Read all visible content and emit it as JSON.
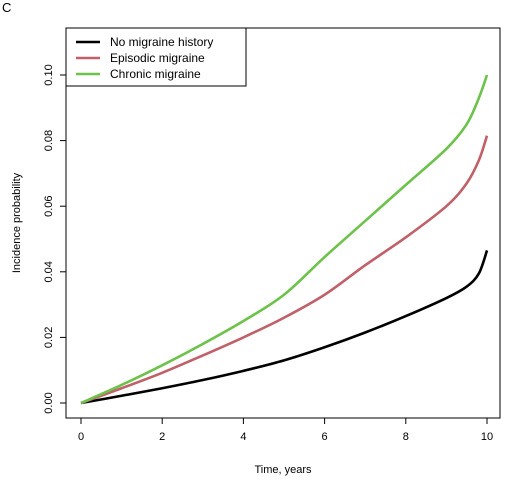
{
  "panel_label": "C",
  "chart_data": {
    "type": "line",
    "title": "",
    "xlabel": "Time, years",
    "ylabel": "Incidence probability",
    "xlim": [
      0,
      10
    ],
    "ylim": [
      0,
      0.105
    ],
    "x_ticks": [
      0,
      2,
      4,
      6,
      8,
      10
    ],
    "y_ticks": [
      0.0,
      0.02,
      0.04,
      0.06,
      0.08,
      0.1
    ],
    "y_tick_labels": [
      "0.00",
      "0.02",
      "0.04",
      "0.06",
      "0.08",
      "0.10"
    ],
    "x_tick_labels": [
      "0",
      "2",
      "4",
      "6",
      "8",
      "10"
    ],
    "grid": false,
    "legend_position": "top-left",
    "series": [
      {
        "name": "No migraine history",
        "color": "#000000",
        "x": [
          0,
          1,
          2,
          3,
          4,
          5,
          6,
          7,
          8,
          9,
          9.5,
          9.8,
          10
        ],
        "y": [
          0.0,
          0.0022,
          0.0045,
          0.007,
          0.0098,
          0.013,
          0.017,
          0.0215,
          0.0265,
          0.032,
          0.0355,
          0.0395,
          0.0465
        ]
      },
      {
        "name": "Episodic migraine",
        "color": "#c0616a",
        "x": [
          0,
          1,
          2,
          3,
          4,
          5,
          6,
          7,
          8,
          9,
          9.5,
          9.8,
          10
        ],
        "y": [
          0.0,
          0.0045,
          0.0092,
          0.0145,
          0.02,
          0.026,
          0.033,
          0.042,
          0.0505,
          0.06,
          0.067,
          0.074,
          0.0815
        ]
      },
      {
        "name": "Chronic migraine",
        "color": "#6cc24a",
        "x": [
          0,
          1,
          2,
          3,
          4,
          5,
          6,
          7,
          8,
          9,
          9.5,
          9.8,
          10
        ],
        "y": [
          0.0,
          0.0055,
          0.0115,
          0.018,
          0.025,
          0.033,
          0.0445,
          0.0555,
          0.0665,
          0.0775,
          0.085,
          0.093,
          0.1
        ]
      }
    ]
  }
}
